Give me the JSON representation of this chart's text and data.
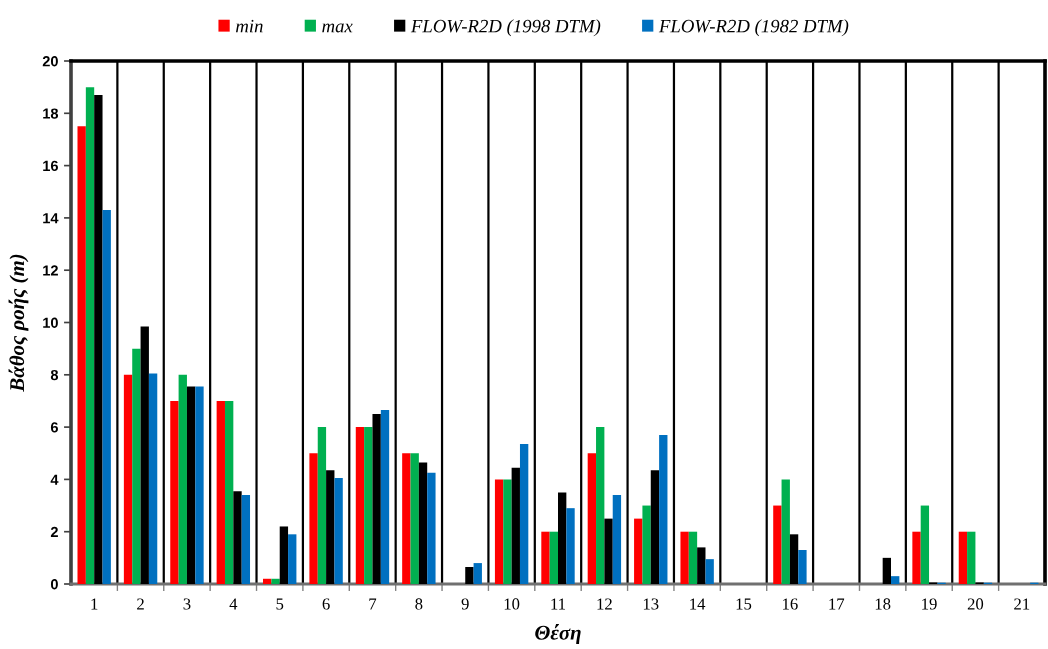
{
  "chart_data": {
    "type": "bar",
    "xlabel": "Θέση",
    "ylabel": "Βάθος ροής (m)",
    "categories": [
      "1",
      "2",
      "3",
      "4",
      "5",
      "6",
      "7",
      "8",
      "9",
      "10",
      "11",
      "12",
      "13",
      "14",
      "15",
      "16",
      "17",
      "18",
      "19",
      "20",
      "21"
    ],
    "series": [
      {
        "name": "min",
        "color": "#ff0000",
        "values": [
          17.5,
          8,
          7,
          7,
          0.2,
          5,
          6,
          5,
          null,
          4,
          2,
          5,
          2.5,
          2,
          null,
          3,
          null,
          null,
          2,
          2,
          null
        ]
      },
      {
        "name": "max",
        "color": "#00b050",
        "values": [
          19,
          9,
          8,
          7,
          0.2,
          6,
          6,
          5,
          null,
          4,
          2,
          6,
          3,
          2,
          null,
          4,
          null,
          null,
          3,
          2,
          null
        ]
      },
      {
        "name": "FLOW-R2D (1998 DTM)",
        "color": "#000000",
        "values": [
          18.7,
          9.85,
          7.55,
          3.55,
          2.2,
          4.35,
          6.5,
          4.65,
          0.65,
          4.45,
          3.5,
          2.5,
          4.35,
          1.4,
          null,
          1.9,
          null,
          1.0,
          0.06,
          0.06,
          null
        ]
      },
      {
        "name": "FLOW-R2D (1982 DTM)",
        "color": "#0070c0",
        "values": [
          14.3,
          8.05,
          7.55,
          3.4,
          1.9,
          4.05,
          6.65,
          4.25,
          0.8,
          5.35,
          2.9,
          3.4,
          5.7,
          0.95,
          null,
          1.3,
          null,
          0.3,
          0.05,
          0.05,
          0.05
        ]
      }
    ],
    "ylim": [
      0,
      20
    ],
    "yticks": [
      0,
      2,
      4,
      6,
      8,
      10,
      12,
      14,
      16,
      18,
      20
    ],
    "grid": "x",
    "legend": "top"
  }
}
